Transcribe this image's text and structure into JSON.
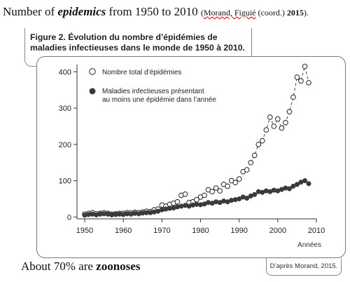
{
  "caption": {
    "prefix": "Number of ",
    "emph": "epidemics",
    "suffix": " from 1950 to 2010 ",
    "source_open": "(",
    "source_author": "Morand, Figuié",
    "source_mid": " (coord.) ",
    "source_year": "2015",
    "source_close": ")."
  },
  "figure": {
    "label": "Figure 2.",
    "title": "Évolution du nombre d’épidémies de maladies infectieuses dans le monde de 1950 à 2010."
  },
  "note": {
    "prefix": "About 70% are ",
    "emph": "zoonoses"
  },
  "credit": "D’après Morand, 2015.",
  "chart_data": {
    "type": "scatter",
    "xlabel": "Années",
    "ylabel": "",
    "xlim": [
      1948,
      2010
    ],
    "ylim": [
      -5,
      420
    ],
    "x_ticks": [
      1950,
      1960,
      1970,
      1980,
      1990,
      2000,
      2010
    ],
    "y_ticks": [
      0,
      100,
      200,
      300,
      400
    ],
    "legend_position": "top-left",
    "series": [
      {
        "name": "Nombre total d’épidémies",
        "marker": "open-circle",
        "color": "#222222",
        "trend": "dashed",
        "points": [
          [
            1950,
            8
          ],
          [
            1951,
            10
          ],
          [
            1952,
            12
          ],
          [
            1953,
            9
          ],
          [
            1954,
            10
          ],
          [
            1955,
            12
          ],
          [
            1956,
            10
          ],
          [
            1957,
            8
          ],
          [
            1958,
            9
          ],
          [
            1959,
            10
          ],
          [
            1960,
            10
          ],
          [
            1961,
            12
          ],
          [
            1962,
            11
          ],
          [
            1963,
            13
          ],
          [
            1964,
            12
          ],
          [
            1965,
            14
          ],
          [
            1966,
            16
          ],
          [
            1967,
            15
          ],
          [
            1968,
            20
          ],
          [
            1969,
            22
          ],
          [
            1970,
            33
          ],
          [
            1971,
            30
          ],
          [
            1972,
            35
          ],
          [
            1973,
            38
          ],
          [
            1974,
            42
          ],
          [
            1975,
            60
          ],
          [
            1976,
            63
          ],
          [
            1977,
            40
          ],
          [
            1978,
            42
          ],
          [
            1979,
            48
          ],
          [
            1980,
            55
          ],
          [
            1981,
            60
          ],
          [
            1982,
            75
          ],
          [
            1983,
            70
          ],
          [
            1984,
            80
          ],
          [
            1985,
            72
          ],
          [
            1986,
            90
          ],
          [
            1987,
            85
          ],
          [
            1988,
            100
          ],
          [
            1989,
            95
          ],
          [
            1990,
            105
          ],
          [
            1991,
            125
          ],
          [
            1992,
            130
          ],
          [
            1993,
            150
          ],
          [
            1994,
            170
          ],
          [
            1995,
            200
          ],
          [
            1996,
            210
          ],
          [
            1997,
            240
          ],
          [
            1998,
            275
          ],
          [
            1999,
            250
          ],
          [
            2000,
            270
          ],
          [
            2001,
            245
          ],
          [
            2002,
            260
          ],
          [
            2003,
            290
          ],
          [
            2004,
            330
          ],
          [
            2005,
            385
          ],
          [
            2006,
            375
          ],
          [
            2007,
            415
          ],
          [
            2008,
            370
          ]
        ]
      },
      {
        "name": "Maladies infectieuses présentant au moins une épidémie dans l’année",
        "marker": "filled-circle",
        "color": "#3a3a3a",
        "points": [
          [
            1950,
            5
          ],
          [
            1951,
            7
          ],
          [
            1952,
            8
          ],
          [
            1953,
            6
          ],
          [
            1954,
            8
          ],
          [
            1955,
            9
          ],
          [
            1956,
            8
          ],
          [
            1957,
            6
          ],
          [
            1958,
            7
          ],
          [
            1959,
            8
          ],
          [
            1960,
            7
          ],
          [
            1961,
            9
          ],
          [
            1962,
            8
          ],
          [
            1963,
            10
          ],
          [
            1964,
            9
          ],
          [
            1965,
            11
          ],
          [
            1966,
            12
          ],
          [
            1967,
            12
          ],
          [
            1968,
            14
          ],
          [
            1969,
            16
          ],
          [
            1970,
            20
          ],
          [
            1971,
            22
          ],
          [
            1972,
            24
          ],
          [
            1973,
            25
          ],
          [
            1974,
            28
          ],
          [
            1975,
            30
          ],
          [
            1976,
            32
          ],
          [
            1977,
            30
          ],
          [
            1978,
            33
          ],
          [
            1979,
            35
          ],
          [
            1980,
            34
          ],
          [
            1981,
            36
          ],
          [
            1982,
            40
          ],
          [
            1983,
            38
          ],
          [
            1984,
            42
          ],
          [
            1985,
            40
          ],
          [
            1986,
            44
          ],
          [
            1987,
            42
          ],
          [
            1988,
            46
          ],
          [
            1989,
            48
          ],
          [
            1990,
            50
          ],
          [
            1991,
            55
          ],
          [
            1992,
            52
          ],
          [
            1993,
            58
          ],
          [
            1994,
            62
          ],
          [
            1995,
            70
          ],
          [
            1996,
            68
          ],
          [
            1997,
            72
          ],
          [
            1998,
            70
          ],
          [
            1999,
            74
          ],
          [
            2000,
            72
          ],
          [
            2001,
            76
          ],
          [
            2002,
            80
          ],
          [
            2003,
            78
          ],
          [
            2004,
            85
          ],
          [
            2005,
            90
          ],
          [
            2006,
            96
          ],
          [
            2007,
            100
          ],
          [
            2008,
            92
          ]
        ]
      }
    ]
  }
}
